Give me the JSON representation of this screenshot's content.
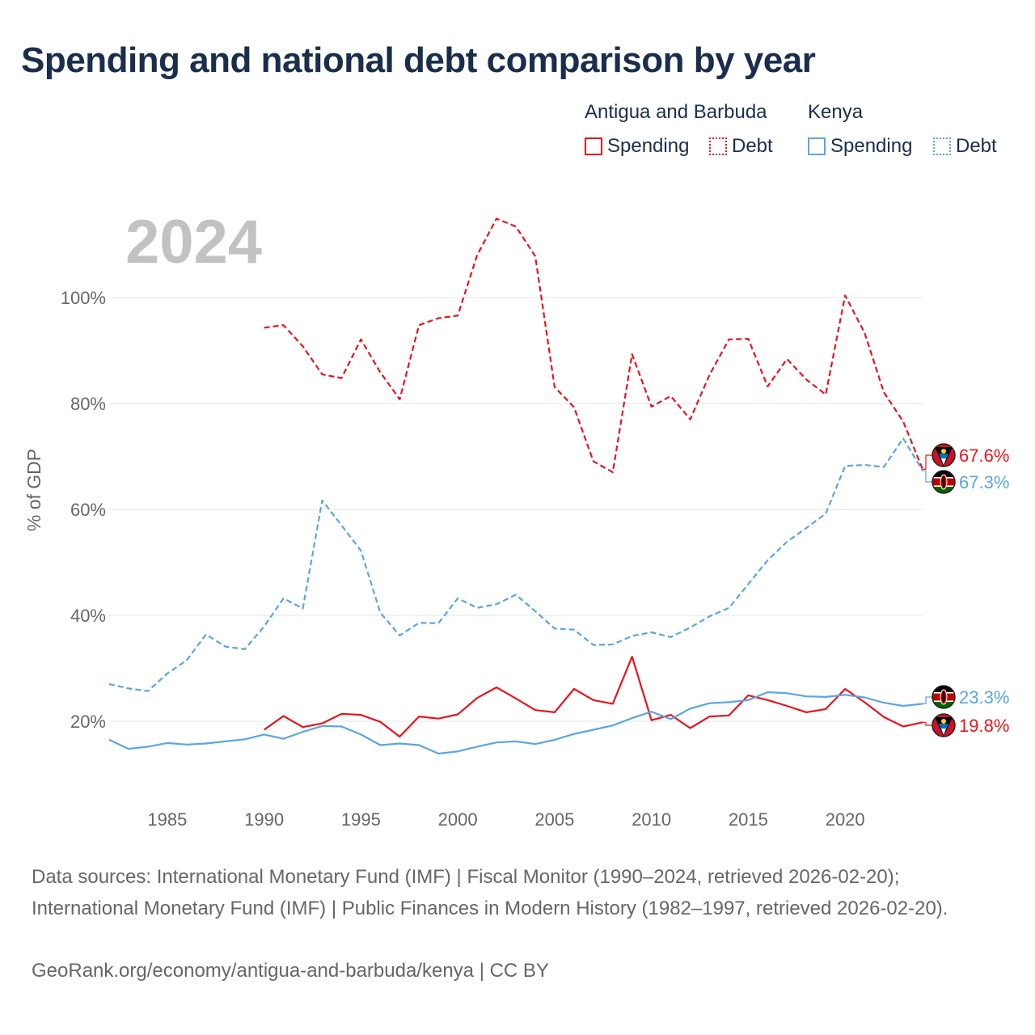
{
  "title": "Spending and national debt comparison by year",
  "legend": {
    "groups": [
      {
        "name": "Antigua and Barbuda",
        "color": "#e8141b",
        "items": [
          {
            "label": "Spending",
            "style": "solid"
          },
          {
            "label": "Debt",
            "style": "dotted"
          }
        ]
      },
      {
        "name": "Kenya",
        "color": "#5aa5e4",
        "items": [
          {
            "label": "Spending",
            "style": "solid"
          },
          {
            "label": "Debt",
            "style": "dotted"
          }
        ]
      }
    ]
  },
  "footer": {
    "sources": "Data sources: International Monetary Fund (IMF) | Fiscal Monitor (1990–2024, retrieved 2026-02-20); International Monetary Fund (IMF) | Public Finances in Modern History (1982–1997, retrieved 2026-02-20).",
    "credit": "GeoRank.org/economy/antigua-and-barbuda/kenya | CC BY"
  },
  "chart_data": {
    "type": "line",
    "title": "Spending and national debt comparison by year",
    "year_watermark": "2024",
    "ylabel": "% of GDP",
    "xlabel": "",
    "xlim": [
      1982,
      2024
    ],
    "ylim": [
      6,
      115
    ],
    "x_ticks": [
      1985,
      1990,
      1995,
      2000,
      2005,
      2010,
      2015,
      2020
    ],
    "y_ticks": [
      20,
      40,
      60,
      80,
      100
    ],
    "y_tick_labels": [
      "20%",
      "40%",
      "60%",
      "80%",
      "100%"
    ],
    "grid": true,
    "series": [
      {
        "name": "Antigua and Barbuda Debt",
        "country": "Antigua and Barbuda",
        "measure": "Debt",
        "color": "#e8141b",
        "dash": "dashed",
        "x": [
          1990,
          1991,
          1992,
          1993,
          1994,
          1995,
          1996,
          1997,
          1998,
          1999,
          2000,
          2001,
          2002,
          2003,
          2004,
          2005,
          2006,
          2007,
          2008,
          2009,
          2010,
          2011,
          2012,
          2013,
          2014,
          2015,
          2016,
          2017,
          2018,
          2019,
          2020,
          2021,
          2022,
          2023,
          2024
        ],
        "values": [
          94.3,
          94.8,
          90.8,
          85.5,
          84.8,
          92.1,
          85.9,
          80.8,
          94.8,
          96.1,
          96.6,
          108.0,
          114.9,
          113.4,
          107.8,
          83.1,
          79.3,
          69.1,
          67.0,
          89.3,
          79.4,
          81.4,
          77.0,
          85.4,
          92.1,
          92.2,
          83.2,
          88.4,
          84.5,
          81.7,
          100.4,
          93.4,
          82.1,
          76.6,
          67.6
        ],
        "end_label": "67.6%"
      },
      {
        "name": "Kenya Debt",
        "country": "Kenya",
        "measure": "Debt",
        "color": "#5aa5e4",
        "dash": "dashed",
        "x": [
          1982,
          1983,
          1984,
          1985,
          1986,
          1987,
          1988,
          1989,
          1990,
          1991,
          1992,
          1993,
          1994,
          1995,
          1996,
          1997,
          1998,
          1999,
          2000,
          2001,
          2002,
          2003,
          2004,
          2005,
          2006,
          2007,
          2008,
          2009,
          2010,
          2011,
          2012,
          2013,
          2014,
          2015,
          2016,
          2017,
          2018,
          2019,
          2020,
          2021,
          2022,
          2023,
          2024
        ],
        "values": [
          27.0,
          26.2,
          25.7,
          29.0,
          31.5,
          36.4,
          34.1,
          33.6,
          37.9,
          43.2,
          41.3,
          61.7,
          57.0,
          52.2,
          40.5,
          36.2,
          38.6,
          38.5,
          43.2,
          41.4,
          42.1,
          43.9,
          40.8,
          37.5,
          37.3,
          34.4,
          34.5,
          36.1,
          36.8,
          35.9,
          37.7,
          39.8,
          41.4,
          45.9,
          50.4,
          53.9,
          56.5,
          59.2,
          68.2,
          68.4,
          68.0,
          73.4,
          67.3
        ],
        "end_label": "67.3%"
      },
      {
        "name": "Antigua and Barbuda Spending",
        "country": "Antigua and Barbuda",
        "measure": "Spending",
        "color": "#e8141b",
        "dash": "solid",
        "x": [
          1990,
          1991,
          1992,
          1993,
          1994,
          1995,
          1996,
          1997,
          1998,
          1999,
          2000,
          2001,
          2002,
          2003,
          2004,
          2005,
          2006,
          2007,
          2008,
          2009,
          2010,
          2011,
          2012,
          2013,
          2014,
          2015,
          2016,
          2017,
          2018,
          2019,
          2020,
          2021,
          2022,
          2023,
          2024
        ],
        "values": [
          18.4,
          21.0,
          18.9,
          19.6,
          21.4,
          21.2,
          19.9,
          17.1,
          20.9,
          20.5,
          21.3,
          24.4,
          26.4,
          24.3,
          22.1,
          21.7,
          26.1,
          24.0,
          23.3,
          32.2,
          20.2,
          21.2,
          18.7,
          20.9,
          21.1,
          24.9,
          24.0,
          22.9,
          21.7,
          22.3,
          26.1,
          23.6,
          20.8,
          19.0,
          19.8
        ],
        "end_label": "19.8%"
      },
      {
        "name": "Kenya Spending",
        "country": "Kenya",
        "measure": "Spending",
        "color": "#5aa5e4",
        "dash": "solid",
        "x": [
          1982,
          1983,
          1984,
          1985,
          1986,
          1987,
          1988,
          1989,
          1990,
          1991,
          1992,
          1993,
          1994,
          1995,
          1996,
          1997,
          1998,
          1999,
          2000,
          2001,
          2002,
          2003,
          2004,
          2005,
          2006,
          2007,
          2008,
          2009,
          2010,
          2011,
          2012,
          2013,
          2014,
          2015,
          2016,
          2017,
          2018,
          2019,
          2020,
          2021,
          2022,
          2023,
          2024
        ],
        "values": [
          16.5,
          14.8,
          15.2,
          15.9,
          15.6,
          15.8,
          16.2,
          16.6,
          17.5,
          16.7,
          18.0,
          19.1,
          19.0,
          17.5,
          15.5,
          15.8,
          15.5,
          13.9,
          14.3,
          15.2,
          16.0,
          16.2,
          15.7,
          16.5,
          17.6,
          18.4,
          19.2,
          20.6,
          21.8,
          20.4,
          22.4,
          23.4,
          23.6,
          24.0,
          25.5,
          25.3,
          24.7,
          24.6,
          25.0,
          24.5,
          23.5,
          22.9,
          23.3
        ],
        "end_label": "23.3%"
      }
    ]
  }
}
